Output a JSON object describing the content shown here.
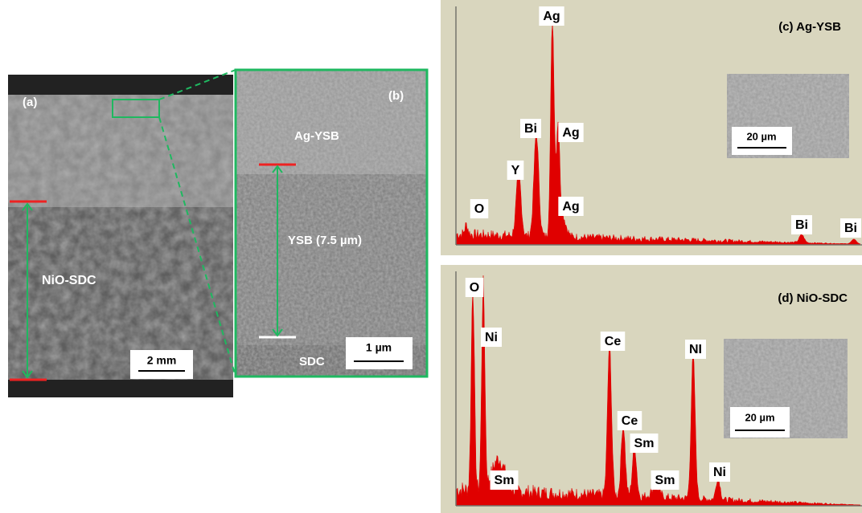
{
  "panels": [
    {
      "label": "(a)",
      "region_label": "NiO-SDC",
      "scale_bar": "2 mm"
    },
    {
      "label": "(b)",
      "texts": [
        "Ag-YSB",
        "YSB (7.5 µm)",
        "SDC"
      ],
      "scale_bar": "1 µm"
    },
    {
      "label": "(c) Ag-YSB",
      "peaks": [
        "O",
        "Y",
        "Bi",
        "Ag",
        "Ag",
        "Ag",
        "Bi",
        "Bi"
      ],
      "inset_scale_bar": "20 µm"
    },
    {
      "label": "(d) NiO-SDC",
      "peaks": [
        "O",
        "Ni",
        "Sm",
        "Ce",
        "Ce",
        "Sm",
        "Sm",
        "NI",
        "Ni"
      ],
      "inset_scale_bar": "20 µm"
    }
  ]
}
